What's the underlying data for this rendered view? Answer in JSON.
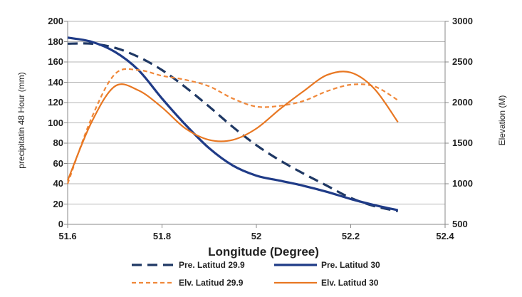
{
  "chart_data": {
    "type": "line",
    "title": "",
    "xlabel": "Longitude (Degree)",
    "ylabel_left": "precipitatin 48 Hour (mm)",
    "ylabel_right": "Elevation (M)",
    "xlim": [
      51.6,
      52.4
    ],
    "xticks": [
      "51.6",
      "51.8",
      "52",
      "52.2",
      "52.4"
    ],
    "ylim_left": [
      0,
      200
    ],
    "yticks_left": [
      "0",
      "20",
      "40",
      "60",
      "80",
      "100",
      "120",
      "140",
      "160",
      "180",
      "200"
    ],
    "ylim_right": [
      500,
      3000
    ],
    "yticks_right": [
      "500",
      "1000",
      "1500",
      "2000",
      "2500",
      "3000"
    ],
    "grid": true,
    "legend_placement": "bottom",
    "series": [
      {
        "name": "Pre.  Latitud 29.9",
        "axis": "left",
        "color": "#1f3864",
        "style": "dashed",
        "x": [
          51.6,
          51.65,
          51.7,
          51.75,
          51.8,
          51.85,
          51.9,
          51.95,
          52.0,
          52.05,
          52.1,
          52.15,
          52.2,
          52.25,
          52.3
        ],
        "y": [
          178,
          178,
          174,
          165,
          152,
          135,
          116,
          96,
          78,
          63,
          50,
          38,
          26,
          18,
          13
        ]
      },
      {
        "name": "Pre.  Latitud 30",
        "axis": "left",
        "color": "#1f3b87",
        "style": "solid",
        "x": [
          51.6,
          51.65,
          51.7,
          51.75,
          51.8,
          51.85,
          51.9,
          51.95,
          52.0,
          52.05,
          52.1,
          52.15,
          52.2,
          52.25,
          52.3
        ],
        "y": [
          184,
          180,
          170,
          152,
          124,
          98,
          75,
          58,
          48,
          43,
          38,
          32,
          25,
          19,
          14
        ]
      },
      {
        "name": "Elv.  Latitud 29.9",
        "axis": "right",
        "color": "#f0883a",
        "style": "dashed",
        "x": [
          51.6,
          51.65,
          51.7,
          51.75,
          51.8,
          51.85,
          51.9,
          51.95,
          52.0,
          52.05,
          52.1,
          52.15,
          52.2,
          52.25,
          52.3
        ],
        "y": [
          1000,
          1800,
          2350,
          2400,
          2330,
          2280,
          2200,
          2050,
          1950,
          1960,
          2020,
          2140,
          2220,
          2200,
          2030
        ]
      },
      {
        "name": "Elv.  Latitud 30",
        "axis": "right",
        "color": "#e87722",
        "style": "solid",
        "x": [
          51.6,
          51.65,
          51.7,
          51.75,
          51.8,
          51.85,
          51.9,
          51.95,
          52.0,
          52.05,
          52.1,
          52.15,
          52.2,
          52.25,
          52.3
        ],
        "y": [
          1040,
          1750,
          2200,
          2150,
          1940,
          1680,
          1540,
          1540,
          1680,
          1920,
          2140,
          2340,
          2370,
          2170,
          1760
        ]
      }
    ]
  }
}
